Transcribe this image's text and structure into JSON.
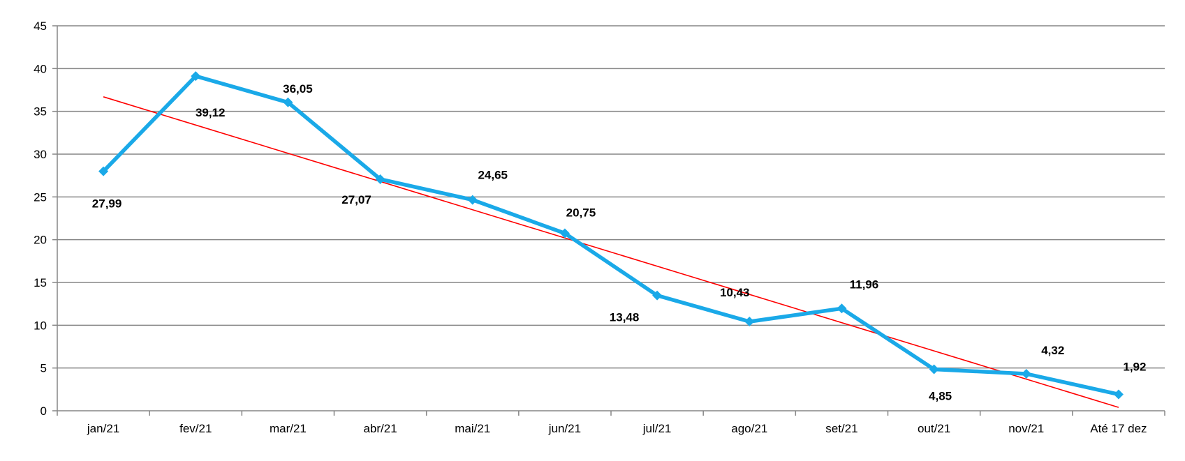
{
  "chart_data": {
    "type": "line",
    "title": "",
    "xlabel": "",
    "ylabel": "",
    "categories": [
      "jan/21",
      "fev/21",
      "mar/21",
      "abr/21",
      "mai/21",
      "jun/21",
      "jul/21",
      "ago/21",
      "set/21",
      "out/21",
      "nov/21",
      "Até 17 dez"
    ],
    "series": [
      {
        "color": "#1aa9e8",
        "marker": "diamond",
        "values": [
          27.99,
          39.12,
          36.05,
          27.07,
          24.65,
          20.75,
          13.48,
          10.43,
          11.96,
          4.85,
          4.32,
          1.92
        ],
        "labels": [
          "27,99",
          "39,12",
          "36,05",
          "27,07",
          "24,65",
          "20,75",
          "13,48",
          "10,43",
          "11,96",
          "4,85",
          "4,32",
          "1,92"
        ]
      }
    ],
    "trendline": {
      "type": "linear",
      "color": "#ff0000",
      "start": 36.7,
      "end": 0.4
    },
    "ylim": [
      0,
      45
    ],
    "yticks": [
      "0",
      "5",
      "10",
      "15",
      "20",
      "25",
      "30",
      "35",
      "40",
      "45"
    ],
    "grid": true,
    "gridline_color": "#868686",
    "legend": "none"
  }
}
